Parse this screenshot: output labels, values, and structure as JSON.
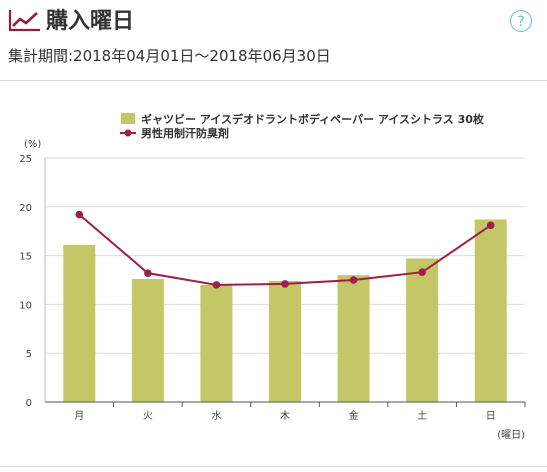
{
  "header": {
    "title": "購入曜日",
    "period": "集計期間:2018年04月01日〜2018年06月30日",
    "help_label": "?"
  },
  "colors": {
    "bar": "#c3c766",
    "line": "#9e1f4a",
    "accent": "#5bbfd8"
  },
  "icons": {
    "title": "trend-chart-icon",
    "help": "question-circle-icon"
  },
  "chart_data": {
    "type": "bar",
    "categories": [
      "月",
      "火",
      "水",
      "木",
      "金",
      "土",
      "日"
    ],
    "series": [
      {
        "name": "ギャツビー アイスデオドラントボディペーパー アイスシトラス 30枚",
        "type": "bar",
        "values": [
          16.1,
          12.6,
          12.0,
          12.4,
          13.0,
          14.7,
          18.7
        ]
      },
      {
        "name": "男性用制汗防臭剤",
        "type": "line",
        "values": [
          19.2,
          13.2,
          12.0,
          12.1,
          12.5,
          13.3,
          18.1
        ]
      }
    ],
    "ylabel": "(%)",
    "xlabel": "(曜日)",
    "ylim": [
      0,
      25
    ],
    "yticks": [
      0,
      5,
      10,
      15,
      20,
      25
    ],
    "grid": true,
    "legend_position": "top-right"
  }
}
